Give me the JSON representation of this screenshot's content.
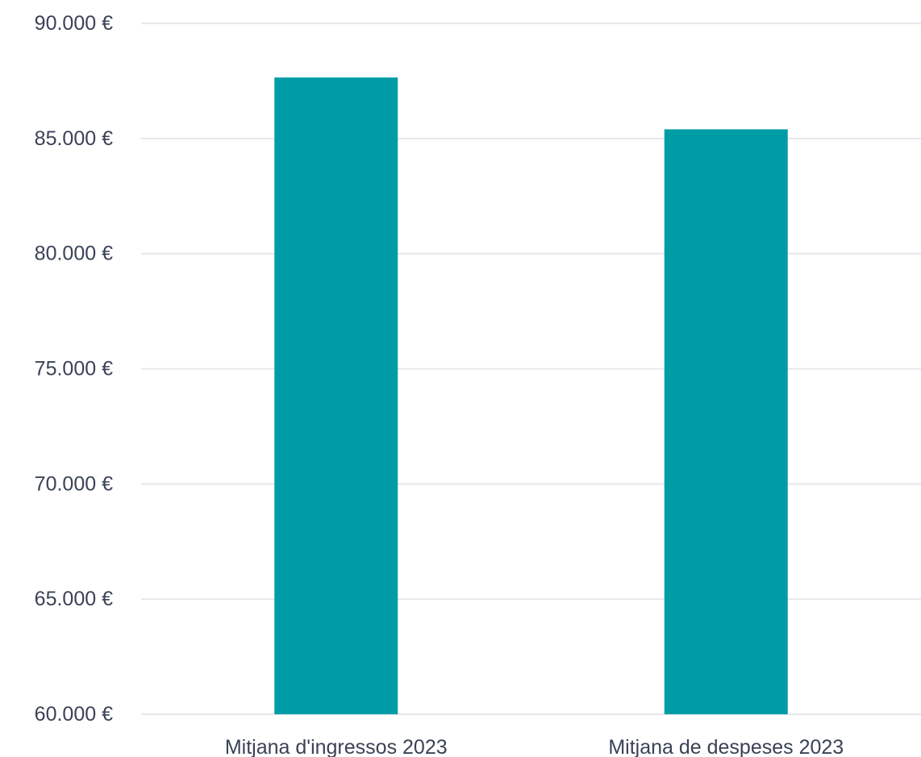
{
  "chart_data": {
    "type": "bar",
    "categories": [
      "Mitjana d'ingressos 2023",
      "Mitjana de despeses 2023"
    ],
    "values": [
      87650,
      85400
    ],
    "title": "",
    "xlabel": "",
    "ylabel": "",
    "ylim": [
      60000,
      90000
    ],
    "y_ticks": [
      60000,
      65000,
      70000,
      75000,
      80000,
      85000,
      90000
    ],
    "y_tick_labels": [
      "60.000 €",
      "65.000 €",
      "70.000 €",
      "75.000 €",
      "80.000 €",
      "85.000 €",
      "90.000 €"
    ],
    "bar_color": "#009ca6",
    "grid": true,
    "legend": "none"
  }
}
